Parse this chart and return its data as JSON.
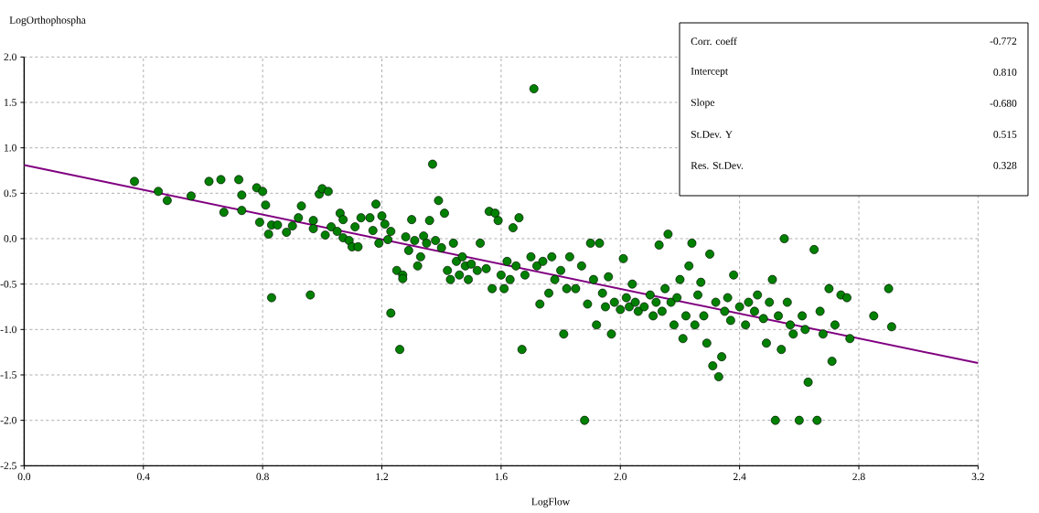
{
  "chart_data": {
    "type": "scatter",
    "xlabel": "LogFlow",
    "ylabel": "LogOrthophospha",
    "annotations": [
      "Corr. coeff",
      "-0.772",
      "Intercept",
      "0.810",
      "Slope",
      "-0.680",
      "St.Dev. Y",
      "0.515",
      "Res. St.Dev.",
      "0.328"
    ],
    "xlim": [
      0,
      3.2
    ],
    "ylim": [
      -2.5,
      2.0
    ],
    "xticks": [
      {
        "value": 0,
        "label": "0.0"
      },
      0.4,
      0.8,
      1.2,
      1.6,
      {
        "value": 2,
        "label": "2.0"
      },
      2.4,
      2.8,
      3.2
    ],
    "yticks": [
      {
        "value": -2.5,
        "label": "-2.5"
      },
      {
        "value": -2,
        "label": "-2.0"
      },
      -1.5,
      {
        "value": -1,
        "label": "-1.0"
      },
      -0.5,
      {
        "value": 0,
        "label": "0.0"
      },
      0.5,
      {
        "value": 1,
        "label": "1.0"
      },
      1.5,
      {
        "value": 2,
        "label": "2.0"
      }
    ],
    "grid": true,
    "series": [
      {
        "color": "#008000",
        "marker": "circle",
        "x": [
          0.37,
          0.45,
          0.48,
          0.56,
          0.62,
          0.66,
          0.67,
          0.72,
          0.73,
          0.73,
          0.78,
          0.79,
          0.8,
          0.81,
          0.82,
          0.83,
          0.83,
          0.85,
          0.88,
          0.9,
          0.92,
          0.93,
          0.96,
          0.97,
          0.97,
          0.99,
          1.0,
          1.01,
          1.02,
          1.03,
          1.05,
          1.06,
          1.07,
          1.07,
          1.09,
          1.1,
          1.11,
          1.12,
          1.13,
          1.16,
          1.17,
          1.18,
          1.19,
          1.2,
          1.21,
          1.22,
          1.23,
          1.23,
          1.25,
          1.26,
          1.27,
          1.27,
          1.28,
          1.29,
          1.3,
          1.31,
          1.32,
          1.33,
          1.34,
          1.35,
          1.36,
          1.37,
          1.38,
          1.39,
          1.4,
          1.41,
          1.42,
          1.43,
          1.44,
          1.45,
          1.46,
          1.47,
          1.48,
          1.49,
          1.5,
          1.52,
          1.53,
          1.55,
          1.56,
          1.57,
          1.58,
          1.59,
          1.6,
          1.61,
          1.62,
          1.63,
          1.64,
          1.65,
          1.66,
          1.67,
          1.68,
          1.7,
          1.71,
          1.72,
          1.73,
          1.74,
          1.76,
          1.77,
          1.78,
          1.8,
          1.81,
          1.82,
          1.83,
          1.85,
          1.87,
          1.88,
          1.89,
          1.9,
          1.91,
          1.92,
          1.93,
          1.94,
          1.95,
          1.96,
          1.97,
          1.98,
          2.0,
          2.01,
          2.02,
          2.03,
          2.04,
          2.05,
          2.06,
          2.08,
          2.1,
          2.11,
          2.12,
          2.13,
          2.14,
          2.15,
          2.16,
          2.17,
          2.18,
          2.19,
          2.2,
          2.21,
          2.22,
          2.23,
          2.24,
          2.25,
          2.26,
          2.27,
          2.28,
          2.29,
          2.3,
          2.31,
          2.32,
          2.33,
          2.34,
          2.35,
          2.36,
          2.37,
          2.38,
          2.4,
          2.42,
          2.43,
          2.45,
          2.46,
          2.48,
          2.49,
          2.5,
          2.51,
          2.52,
          2.53,
          2.54,
          2.55,
          2.56,
          2.57,
          2.58,
          2.6,
          2.61,
          2.62,
          2.63,
          2.65,
          2.66,
          2.67,
          2.68,
          2.7,
          2.71,
          2.72,
          2.74,
          2.76,
          2.77,
          2.85,
          2.9,
          2.91
        ],
        "values": [
          0.63,
          0.52,
          0.42,
          0.47,
          0.63,
          0.65,
          0.29,
          0.65,
          0.48,
          0.31,
          0.56,
          0.18,
          0.52,
          0.37,
          0.05,
          -0.65,
          0.15,
          0.15,
          0.07,
          0.14,
          0.23,
          0.36,
          -0.62,
          0.2,
          0.11,
          0.49,
          0.55,
          0.04,
          0.52,
          0.13,
          0.08,
          0.28,
          0.21,
          0.01,
          -0.02,
          -0.09,
          0.13,
          -0.09,
          0.23,
          0.23,
          0.09,
          0.38,
          -0.05,
          0.25,
          0.16,
          -0.01,
          0.08,
          -0.82,
          -0.35,
          -1.22,
          -0.4,
          -0.44,
          0.02,
          -0.13,
          0.21,
          -0.02,
          -0.3,
          -0.2,
          0.03,
          -0.05,
          0.2,
          0.82,
          -0.02,
          0.42,
          -0.1,
          0.28,
          -0.35,
          -0.45,
          -0.05,
          -0.25,
          -0.4,
          -0.2,
          -0.3,
          -0.45,
          -0.28,
          -0.35,
          -0.05,
          -0.33,
          0.3,
          -0.55,
          0.28,
          0.2,
          -0.4,
          -0.55,
          -0.25,
          -0.45,
          0.12,
          -0.3,
          0.23,
          -1.22,
          -0.4,
          -0.2,
          1.65,
          -0.3,
          -0.72,
          -0.25,
          -0.6,
          -0.2,
          -0.45,
          -0.35,
          -1.05,
          -0.55,
          -0.2,
          -0.55,
          -0.3,
          -2.0,
          -0.72,
          -0.05,
          -0.45,
          -0.95,
          -0.05,
          -0.6,
          -0.75,
          -0.42,
          -1.05,
          -0.7,
          -0.78,
          -0.22,
          -0.65,
          -0.75,
          -0.5,
          -0.7,
          -0.8,
          -0.75,
          -0.62,
          -0.85,
          -0.7,
          -0.07,
          -0.8,
          -0.55,
          0.05,
          -0.7,
          -0.95,
          -0.65,
          -0.45,
          -1.1,
          -0.85,
          -0.3,
          -0.05,
          -0.95,
          -0.62,
          -0.48,
          -0.85,
          -1.15,
          -0.17,
          -1.4,
          -0.7,
          -1.52,
          -1.3,
          -0.8,
          -0.65,
          -0.9,
          -0.4,
          -0.75,
          -0.95,
          -0.7,
          -0.8,
          -0.62,
          -0.88,
          -1.15,
          -0.7,
          -0.45,
          -2.0,
          -0.85,
          -1.22,
          0.0,
          -0.7,
          -0.95,
          -1.05,
          -2.0,
          -0.85,
          -1.0,
          -1.58,
          -0.12,
          -2.0,
          -0.8,
          -1.05,
          -0.55,
          -1.35,
          -0.95,
          -0.62,
          -0.65,
          -1.1,
          -0.85,
          -0.55,
          -0.97
        ]
      },
      {
        "type": "line",
        "color": "#800080",
        "x": [
          0,
          3.2
        ],
        "values": [
          0.81,
          -1.37
        ],
        "marker": "none"
      }
    ]
  }
}
